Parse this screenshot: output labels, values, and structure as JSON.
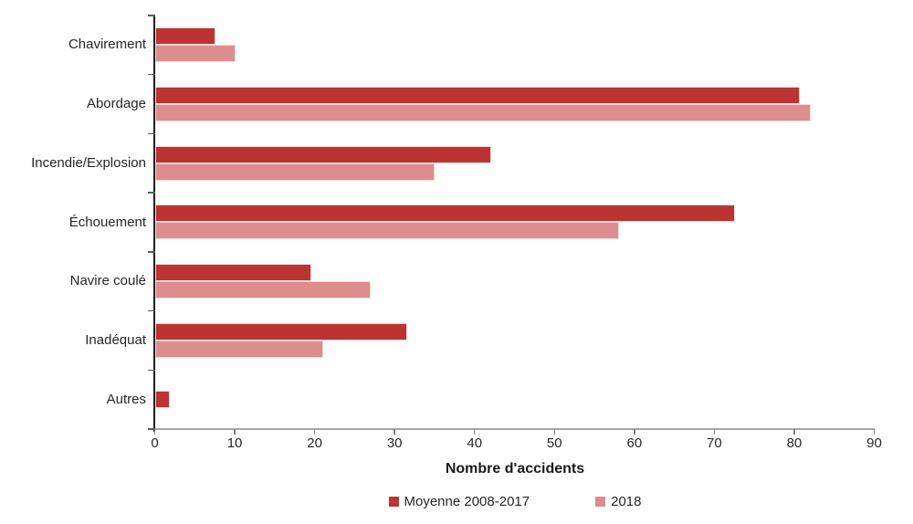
{
  "chart_data": {
    "type": "bar",
    "orientation": "horizontal",
    "title": "",
    "xlabel": "Nombre d'accidents",
    "ylabel": "",
    "xlim": [
      0,
      90
    ],
    "xticks": [
      0,
      10,
      20,
      30,
      40,
      50,
      60,
      70,
      80,
      90
    ],
    "grid": false,
    "legend_position": "bottom",
    "categories": [
      "Chavirement",
      "Abordage",
      "Incendie/Explosion",
      "Échouement",
      "Navire coulé",
      "Inadéquat",
      "Autres"
    ],
    "series": [
      {
        "name": "Moyenne 2008-2017",
        "color": "#bb3431",
        "values": [
          7.5,
          80.6,
          42,
          72.5,
          19.5,
          31.5,
          1.8
        ]
      },
      {
        "name": "2018",
        "color": "#dd8d8e",
        "values": [
          10,
          82,
          35,
          58,
          27,
          21,
          0
        ]
      }
    ]
  },
  "colors": {
    "series_dark": "#bb3431",
    "series_light": "#dd8d8e",
    "y_axis_line": "#1f1f1f",
    "x_axis_line": "#a6a6a6",
    "tick": "#7f7f7f",
    "text": "#262626"
  }
}
